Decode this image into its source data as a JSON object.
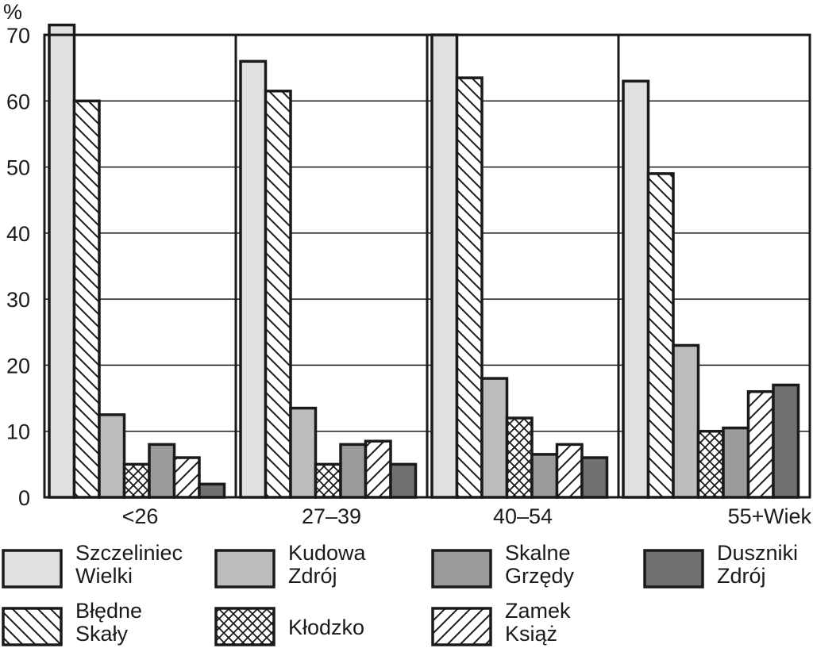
{
  "chart_data": {
    "type": "bar",
    "ylabel": "%",
    "xlabel": "Wiek",
    "ylim": [
      0,
      70
    ],
    "yticks": [
      0,
      10,
      20,
      30,
      40,
      50,
      60,
      70
    ],
    "grid": true,
    "legend_position": "bottom",
    "categories": [
      "<26",
      "27–39",
      "40–54",
      "55+"
    ],
    "series": [
      {
        "name": "Szczeliniec Wielki",
        "legend_lines": [
          "Szczeliniec",
          "Wielki"
        ],
        "pattern": "solid",
        "color": "#e0e0e0",
        "values": [
          71.5,
          66,
          70,
          63
        ]
      },
      {
        "name": "Błędne Skały",
        "legend_lines": [
          "Błędne",
          "Skały"
        ],
        "pattern": "hatch-back",
        "color": "#ffffff",
        "values": [
          60,
          61.5,
          63.5,
          49
        ]
      },
      {
        "name": "Kudowa Zdrój",
        "legend_lines": [
          "Kudowa",
          "Zdrój"
        ],
        "pattern": "solid",
        "color": "#bdbdbd",
        "values": [
          12.5,
          13.5,
          18,
          23
        ]
      },
      {
        "name": "Kłodzko",
        "legend_lines": [
          "Kłodzko"
        ],
        "pattern": "crosshatch",
        "color": "#ffffff",
        "values": [
          5,
          5,
          12,
          10
        ]
      },
      {
        "name": "Skalne Grzędy",
        "legend_lines": [
          "Skalne",
          "Grzędy"
        ],
        "pattern": "solid",
        "color": "#9b9b9b",
        "values": [
          8,
          8,
          6.5,
          10.5
        ]
      },
      {
        "name": "Zamek Książ",
        "legend_lines": [
          "Zamek",
          "Książ"
        ],
        "pattern": "hatch-fwd",
        "color": "#ffffff",
        "values": [
          6,
          8.5,
          8,
          16
        ]
      },
      {
        "name": "Duszniki Zdrój",
        "legend_lines": [
          "Duszniki",
          "Zdrój"
        ],
        "pattern": "solid",
        "color": "#707070",
        "values": [
          2,
          5,
          6,
          17
        ]
      }
    ],
    "legend_order": [
      0,
      2,
      4,
      6,
      1,
      3,
      5
    ]
  }
}
